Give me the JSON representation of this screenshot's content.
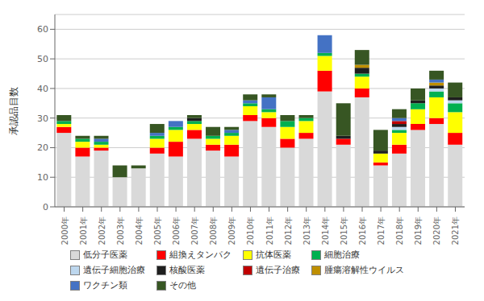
{
  "chart_data": {
    "type": "bar",
    "stacked": true,
    "ylabel": "承認品目数",
    "categories": [
      "2000年",
      "2001年",
      "2002年",
      "2003年",
      "2004年",
      "2005年",
      "2006年",
      "2007年",
      "2008年",
      "2009年",
      "2010年",
      "2011年",
      "2012年",
      "2013年",
      "2014年",
      "2015年",
      "2016年",
      "2017年",
      "2018年",
      "2019年",
      "2020年",
      "2021年"
    ],
    "series": [
      {
        "name": "低分子医薬",
        "color": "#d9d9d9",
        "values": [
          25,
          17,
          19,
          10,
          13,
          18,
          17,
          23,
          19,
          17,
          29,
          27,
          20,
          23,
          39,
          21,
          37,
          14,
          18,
          26,
          28,
          21
        ]
      },
      {
        "name": "組換えタンパク",
        "color": "#ff0000",
        "values": [
          2,
          3,
          1,
          0,
          0,
          2,
          5,
          3,
          2,
          4,
          2,
          3,
          3,
          2,
          7,
          2,
          3,
          1,
          3,
          2,
          2,
          4
        ]
      },
      {
        "name": "抗体医薬",
        "color": "#ffff00",
        "values": [
          1,
          2,
          1,
          0,
          0,
          3,
          4,
          2,
          2,
          3,
          3,
          2,
          4,
          4,
          5,
          0,
          4,
          3,
          4,
          5,
          7,
          7
        ]
      },
      {
        "name": "細胞治療",
        "color": "#00b050",
        "values": [
          1,
          1,
          1,
          0,
          0,
          1,
          1,
          1,
          1,
          1,
          1,
          1,
          2,
          1,
          1,
          0,
          1,
          0,
          1,
          2,
          2,
          3
        ]
      },
      {
        "name": "遺伝子細胞治療",
        "color": "#bdd7ee",
        "values": [
          0,
          0,
          0,
          0,
          0,
          0,
          0,
          0,
          0,
          0,
          0,
          0,
          0,
          0,
          0,
          0,
          0,
          0,
          1,
          0,
          1,
          1
        ]
      },
      {
        "name": "核酸医薬",
        "color": "#1f1f1f",
        "values": [
          0,
          0,
          0,
          0,
          0,
          0,
          0,
          1,
          0,
          0,
          0,
          0,
          0,
          0,
          0,
          1,
          2,
          1,
          1,
          1,
          1,
          1
        ]
      },
      {
        "name": "遺伝子治療",
        "color": "#c00000",
        "values": [
          0,
          0,
          0,
          0,
          0,
          0,
          0,
          0,
          0,
          0,
          0,
          0,
          0,
          0,
          0,
          0,
          0,
          0,
          1,
          0,
          0,
          0
        ]
      },
      {
        "name": "腫瘍溶解性ウイルス",
        "color": "#bf8f00",
        "values": [
          0,
          0,
          0,
          0,
          0,
          0,
          0,
          0,
          0,
          0,
          0,
          0,
          0,
          0,
          0,
          0,
          1,
          0,
          0,
          0,
          1,
          0
        ]
      },
      {
        "name": "ワクチン類",
        "color": "#4472c4",
        "values": [
          0,
          0,
          1,
          0,
          0,
          1,
          2,
          0,
          0,
          1,
          1,
          4,
          0,
          0,
          6,
          0,
          0,
          0,
          1,
          0,
          1,
          0
        ]
      },
      {
        "name": "その他",
        "color": "#375623",
        "values": [
          2,
          1,
          1,
          4,
          1,
          3,
          0,
          1,
          3,
          1,
          2,
          1,
          2,
          1,
          0,
          11,
          5,
          7,
          3,
          4,
          3,
          5
        ]
      }
    ],
    "ylim": [
      0,
      65
    ],
    "yticks": [
      0,
      10,
      20,
      30,
      40,
      50,
      60
    ],
    "grid": true,
    "legend": "bottom"
  }
}
